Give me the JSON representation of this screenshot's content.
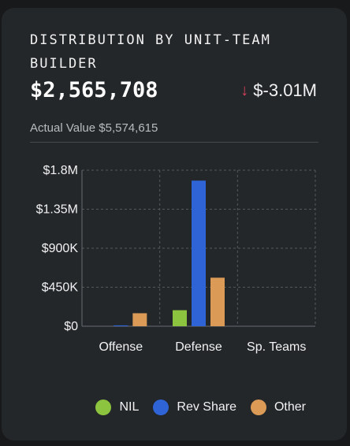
{
  "card": {
    "title": "DISTRIBUTION BY UNIT-TEAM BUILDER",
    "amount": "$2,565,708",
    "delta": "$-3.01M",
    "delta_icon": "arrow-down-icon",
    "subvalue": "Actual Value $5,574,615"
  },
  "colors": {
    "nil": "#8cc43f",
    "rev_share": "#2e64d6",
    "other": "#db9a55",
    "delta_down": "#d8405a"
  },
  "chart_data": {
    "type": "bar",
    "categories": [
      "Offense",
      "Defense",
      "Sp. Teams"
    ],
    "series": [
      {
        "name": "NIL",
        "values": [
          0,
          185000,
          0
        ]
      },
      {
        "name": "Rev Share",
        "values": [
          10000,
          1680000,
          0
        ]
      },
      {
        "name": "Other",
        "values": [
          150000,
          560000,
          0
        ]
      }
    ],
    "ylim": [
      0,
      1800000
    ],
    "yticks": [
      0,
      450000,
      900000,
      1350000,
      1800000
    ],
    "ytick_labels": [
      "$0",
      "$450K",
      "$900K",
      "$1.35M",
      "$1.8M"
    ],
    "grid": true,
    "legend": "bottom-right"
  }
}
